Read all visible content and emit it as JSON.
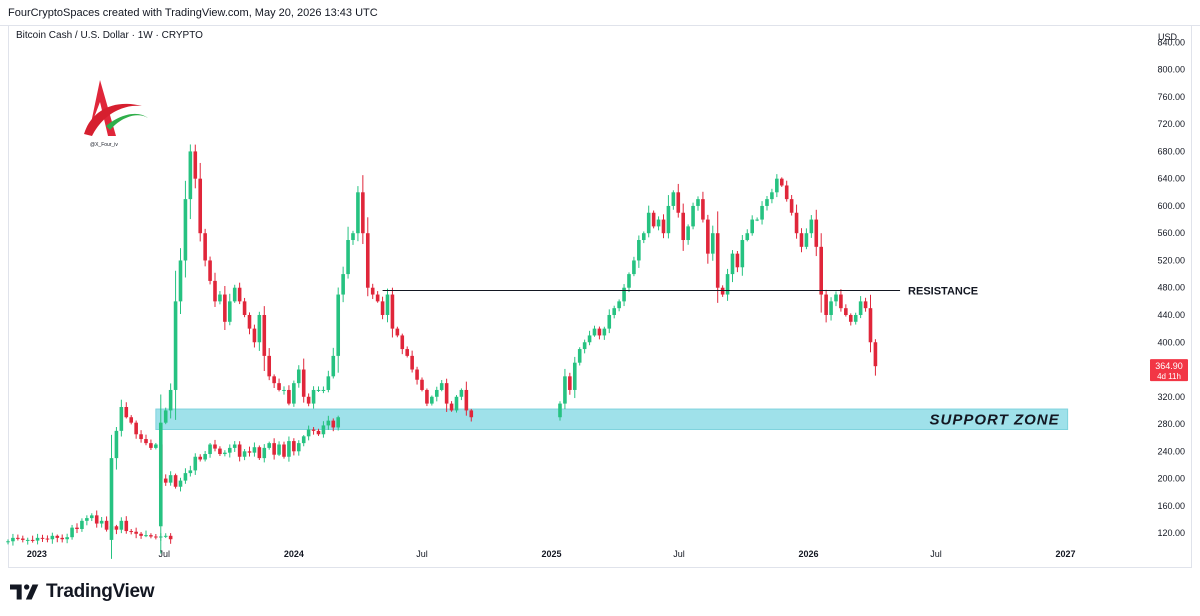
{
  "header": {
    "attribution": "FourCryptoSpaces created with TradingView.com, May 20, 2026 13:43 UTC",
    "symbol_line": "Bitcoin Cash / U.S. Dollar · 1W · CRYPTO"
  },
  "watermark": {
    "handle": "@X_Four_iv"
  },
  "footer": {
    "brand": "TradingView",
    "logo_icon": "tradingview-logo-icon"
  },
  "colors": {
    "up": "#26c281",
    "down": "#e0263a",
    "support_fill": "#9fe1ea",
    "line": "#131722"
  },
  "chart_data": {
    "type": "candlestick",
    "title": "Bitcoin Cash / U.S. Dollar · 1W · CRYPTO",
    "currency_label": "USD",
    "x_ticks": [
      {
        "label": "2023",
        "date": "2023-01-01",
        "bold": true
      },
      {
        "label": "Jul",
        "date": "2023-07-01",
        "bold": false
      },
      {
        "label": "2024",
        "date": "2024-01-01",
        "bold": true
      },
      {
        "label": "Jul",
        "date": "2024-07-01",
        "bold": false
      },
      {
        "label": "2025",
        "date": "2025-01-01",
        "bold": true
      },
      {
        "label": "Jul",
        "date": "2025-07-01",
        "bold": false
      },
      {
        "label": "2026",
        "date": "2026-01-01",
        "bold": true
      },
      {
        "label": "Jul",
        "date": "2026-07-01",
        "bold": false
      },
      {
        "label": "2027",
        "date": "2027-01-01",
        "bold": true
      }
    ],
    "xlim": [
      "2022-11-21",
      "2027-05-01"
    ],
    "y_ticks": [
      120,
      160,
      200,
      240,
      280,
      320,
      400,
      440,
      480,
      520,
      560,
      600,
      640,
      680,
      720,
      760,
      800,
      840
    ],
    "ylim": [
      104,
      864
    ],
    "last_price": {
      "value": "364.90",
      "countdown": "4d 11h"
    },
    "annotations": {
      "resistance": {
        "label": "RESISTANCE",
        "price": 476,
        "from": "2024-05-06",
        "to": "2026-05-11"
      },
      "support_zone": {
        "label": "SUPPORT ZONE",
        "low": 272,
        "high": 302,
        "from": "2023-06-19",
        "to": "2027-01-04"
      }
    },
    "weekly_closes": [
      [
        108,
        113,
        112,
        110,
        110,
        109,
        113,
        112,
        111,
        116,
        113,
        111,
        114,
        128,
        126,
        138,
        142,
        146,
        134,
        138,
        125,
        130,
        125,
        138,
        123,
        122,
        119,
        116,
        117,
        115,
        114,
        115,
        116,
        111
      ],
      [
        230,
        270,
        305,
        290,
        282,
        265,
        258,
        252,
        245,
        250,
        200,
        194,
        205,
        188,
        197,
        208,
        212,
        232,
        228,
        236,
        250,
        244,
        236,
        238,
        245,
        250,
        232,
        240,
        238,
        246,
        230,
        245,
        252,
        235,
        250,
        232,
        255,
        240,
        252,
        262,
        272,
        270,
        265,
        278,
        285,
        275,
        290
      ],
      [
        282,
        300,
        330,
        460,
        520,
        610,
        680,
        640,
        560,
        520,
        490,
        460,
        470,
        430,
        460,
        480,
        460,
        440,
        420,
        400,
        440,
        380,
        350,
        340,
        330,
        330,
        310,
        340,
        360,
        320,
        310,
        330,
        330,
        330,
        350,
        380,
        470,
        500,
        550,
        560,
        620,
        560,
        480,
        470,
        460,
        440,
        470,
        420,
        410,
        390,
        380,
        360,
        345,
        330,
        310,
        320,
        330,
        340,
        310,
        300,
        320,
        330,
        300,
        290
      ],
      [
        310,
        350,
        330,
        370,
        390,
        400,
        410,
        420,
        410,
        420,
        440,
        450,
        460,
        480,
        500,
        520,
        550,
        560,
        590,
        570,
        580,
        560,
        600,
        620,
        590,
        550,
        570,
        600,
        610,
        580,
        530,
        560,
        480,
        470,
        500,
        530,
        510,
        550,
        560,
        580,
        580,
        600,
        610,
        620,
        640,
        630,
        610,
        590,
        560,
        540,
        560,
        580,
        540,
        470,
        440,
        460,
        470,
        450,
        440,
        430,
        440,
        460,
        450,
        400,
        364.9
      ]
    ]
  }
}
